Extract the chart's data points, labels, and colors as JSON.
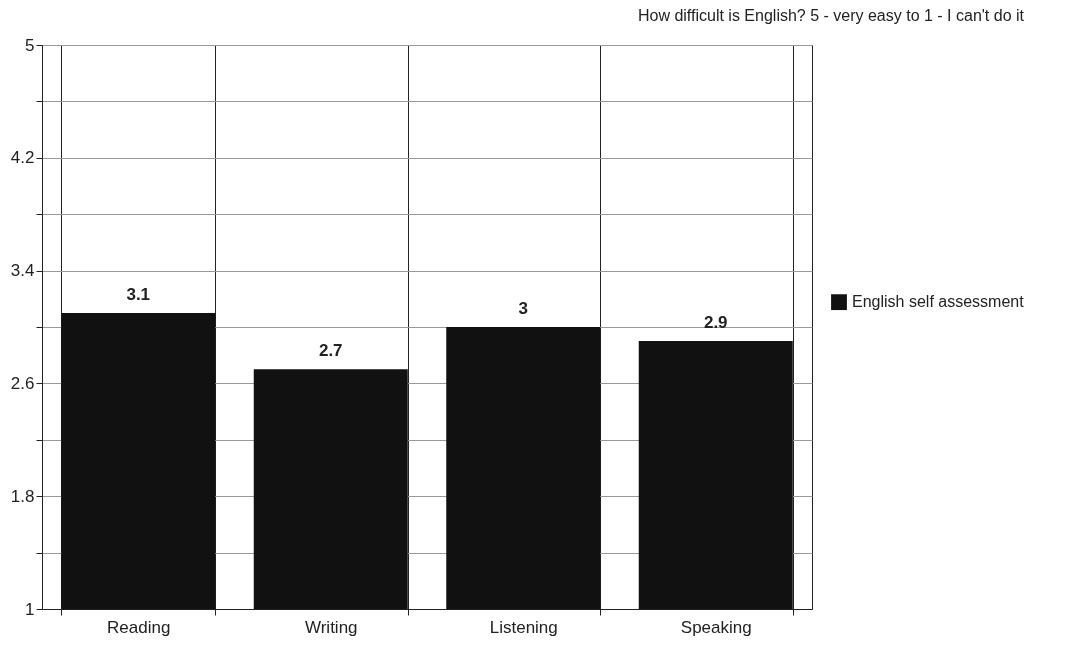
{
  "chart_data": {
    "type": "bar",
    "title": "How difficult is English? 5 - very easy to 1 - I can't do it",
    "categories": [
      "Reading",
      "Writing",
      "Listening",
      "Speaking"
    ],
    "series": [
      {
        "name": "English self assessment",
        "color": "#111111",
        "values": [
          3.1,
          2.7,
          3,
          2.9
        ]
      }
    ],
    "ylim": [
      1,
      5
    ],
    "yticks": [
      1,
      {
        "value": 1.4,
        "label": null
      },
      1.8,
      {
        "value": 2.2,
        "label": null
      },
      2.6,
      {
        "value": 3,
        "label": null
      },
      3.4,
      {
        "value": 3.8,
        "label": null
      },
      4.2,
      {
        "value": 4.6,
        "label": null
      },
      5
    ],
    "grid": true,
    "legend": "right",
    "data_labels": true
  }
}
